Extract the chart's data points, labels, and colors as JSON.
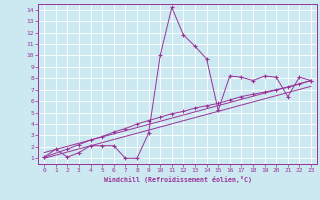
{
  "xlabel": "Windchill (Refroidissement éolien,°C)",
  "bg_color": "#cce8f0",
  "line_color": "#993399",
  "xlim": [
    -0.5,
    23.5
  ],
  "ylim": [
    0.5,
    14.5
  ],
  "xticks": [
    0,
    1,
    2,
    3,
    4,
    5,
    6,
    7,
    8,
    9,
    10,
    11,
    12,
    13,
    14,
    15,
    16,
    17,
    18,
    19,
    20,
    21,
    22,
    23
  ],
  "yticks": [
    1,
    2,
    3,
    4,
    5,
    6,
    7,
    8,
    9,
    10,
    11,
    12,
    13,
    14
  ],
  "series1_x": [
    0,
    1,
    2,
    3,
    4,
    5,
    6,
    7,
    8,
    9,
    10,
    11,
    12,
    13,
    14,
    15,
    16,
    17,
    18,
    19,
    20,
    21,
    22,
    23
  ],
  "series1_y": [
    1.1,
    1.8,
    1.1,
    1.5,
    2.1,
    2.1,
    2.1,
    1.0,
    1.0,
    3.2,
    10.0,
    14.2,
    11.8,
    10.8,
    9.7,
    5.2,
    8.2,
    8.1,
    7.8,
    8.2,
    8.1,
    6.4,
    8.1,
    7.8
  ],
  "series2_x": [
    0,
    2,
    3,
    4,
    5,
    6,
    7,
    8,
    9,
    10,
    11,
    12,
    13,
    14,
    15,
    16,
    17,
    18,
    19,
    20,
    21,
    22,
    23
  ],
  "series2_y": [
    1.1,
    1.8,
    2.2,
    2.6,
    2.9,
    3.3,
    3.6,
    4.0,
    4.3,
    4.6,
    4.9,
    5.1,
    5.4,
    5.6,
    5.8,
    6.1,
    6.4,
    6.6,
    6.8,
    7.0,
    7.2,
    7.5,
    7.8
  ],
  "trend1_x": [
    0,
    23
  ],
  "trend1_y": [
    1.5,
    7.8
  ],
  "trend2_x": [
    0,
    23
  ],
  "trend2_y": [
    1.0,
    7.3
  ]
}
